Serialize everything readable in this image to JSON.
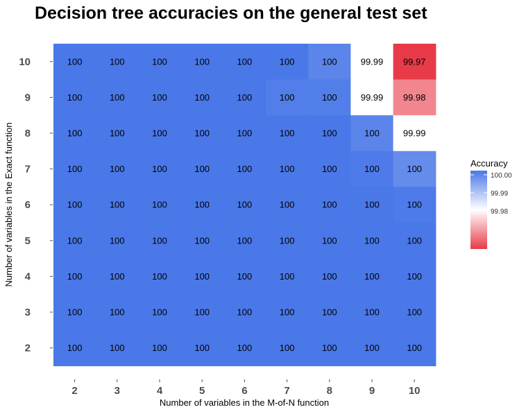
{
  "chart_data": {
    "type": "heatmap",
    "title": "Decision tree accuracies on the general test set",
    "xlabel": "Number of variables in the M-of-N function",
    "ylabel": "Number of variables in the Exact function",
    "x": [
      "2",
      "3",
      "4",
      "5",
      "6",
      "7",
      "8",
      "9",
      "10"
    ],
    "y": [
      "2",
      "3",
      "4",
      "5",
      "6",
      "7",
      "8",
      "9",
      "10"
    ],
    "values": [
      {
        "y": "10",
        "values": [
          100,
          100,
          100,
          100,
          100,
          100,
          99.998,
          99.99,
          99.97
        ],
        "labels": [
          "100",
          "100",
          "100",
          "100",
          "100",
          "100",
          "100",
          "99.99",
          "99.97"
        ]
      },
      {
        "y": "9",
        "values": [
          100,
          100,
          100,
          100,
          100,
          99.999,
          99.999,
          99.99,
          99.98
        ],
        "labels": [
          "100",
          "100",
          "100",
          "100",
          "100",
          "100",
          "100",
          "99.99",
          "99.98"
        ]
      },
      {
        "y": "8",
        "values": [
          100,
          100,
          100,
          100,
          100,
          100,
          100,
          99.998,
          99.99
        ],
        "labels": [
          "100",
          "100",
          "100",
          "100",
          "100",
          "100",
          "100",
          "100",
          "99.99"
        ]
      },
      {
        "y": "7",
        "values": [
          100,
          100,
          100,
          100,
          100,
          100,
          100,
          99.9995,
          99.997
        ],
        "labels": [
          "100",
          "100",
          "100",
          "100",
          "100",
          "100",
          "100",
          "100",
          "100"
        ]
      },
      {
        "y": "6",
        "values": [
          100,
          100,
          100,
          100,
          100,
          100,
          100,
          100,
          99.9995
        ],
        "labels": [
          "100",
          "100",
          "100",
          "100",
          "100",
          "100",
          "100",
          "100",
          "100"
        ]
      },
      {
        "y": "5",
        "values": [
          100,
          100,
          100,
          100,
          100,
          100,
          100,
          100,
          100
        ],
        "labels": [
          "100",
          "100",
          "100",
          "100",
          "100",
          "100",
          "100",
          "100",
          "100"
        ]
      },
      {
        "y": "4",
        "values": [
          100,
          100,
          100,
          100,
          100,
          100,
          100,
          100,
          100
        ],
        "labels": [
          "100",
          "100",
          "100",
          "100",
          "100",
          "100",
          "100",
          "100",
          "100"
        ]
      },
      {
        "y": "3",
        "values": [
          100,
          100,
          100,
          100,
          100,
          100,
          100,
          100,
          100
        ],
        "labels": [
          "100",
          "100",
          "100",
          "100",
          "100",
          "100",
          "100",
          "100",
          "100"
        ]
      },
      {
        "y": "2",
        "values": [
          100,
          100,
          100,
          100,
          100,
          100,
          100,
          100,
          100
        ],
        "labels": [
          "100",
          "100",
          "100",
          "100",
          "100",
          "100",
          "100",
          "100",
          "100"
        ]
      }
    ],
    "legend": {
      "title": "Accuracy",
      "placement": "right",
      "ticks": [
        {
          "value": 100.0,
          "label": "100.00"
        },
        {
          "value": 99.99,
          "label": "99.99"
        },
        {
          "value": 99.98,
          "label": "99.98"
        }
      ],
      "range": [
        99.97,
        100.0
      ]
    },
    "colors": {
      "high": "#4a78e8",
      "mid": "#ffffff",
      "low": "#e83a48",
      "midpoint": 99.99
    },
    "grid": false
  }
}
